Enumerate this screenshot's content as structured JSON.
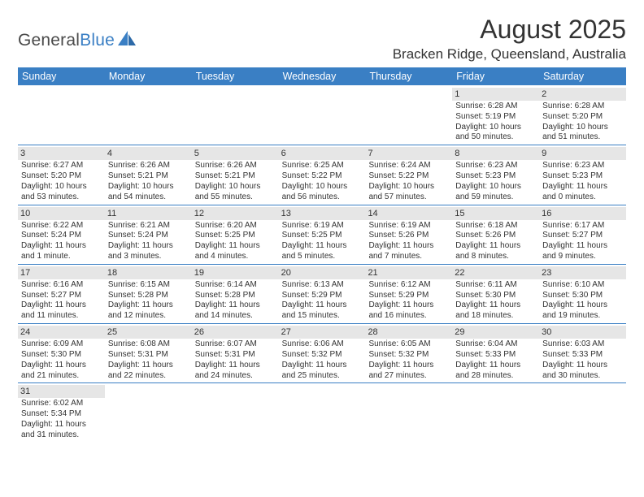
{
  "logo": {
    "text1": "General",
    "text2": "Blue"
  },
  "title": "August 2025",
  "location": "Bracken Ridge, Queensland, Australia",
  "colors": {
    "header_bg": "#3a7fc4",
    "header_text": "#ffffff",
    "daynum_bg": "#e6e6e6",
    "border": "#3a7fc4",
    "text": "#333333",
    "background": "#ffffff"
  },
  "weekdays": [
    "Sunday",
    "Monday",
    "Tuesday",
    "Wednesday",
    "Thursday",
    "Friday",
    "Saturday"
  ],
  "weeks": [
    [
      {
        "n": "",
        "sr": "",
        "ss": "",
        "dl": ""
      },
      {
        "n": "",
        "sr": "",
        "ss": "",
        "dl": ""
      },
      {
        "n": "",
        "sr": "",
        "ss": "",
        "dl": ""
      },
      {
        "n": "",
        "sr": "",
        "ss": "",
        "dl": ""
      },
      {
        "n": "",
        "sr": "",
        "ss": "",
        "dl": ""
      },
      {
        "n": "1",
        "sr": "Sunrise: 6:28 AM",
        "ss": "Sunset: 5:19 PM",
        "dl": "Daylight: 10 hours and 50 minutes."
      },
      {
        "n": "2",
        "sr": "Sunrise: 6:28 AM",
        "ss": "Sunset: 5:20 PM",
        "dl": "Daylight: 10 hours and 51 minutes."
      }
    ],
    [
      {
        "n": "3",
        "sr": "Sunrise: 6:27 AM",
        "ss": "Sunset: 5:20 PM",
        "dl": "Daylight: 10 hours and 53 minutes."
      },
      {
        "n": "4",
        "sr": "Sunrise: 6:26 AM",
        "ss": "Sunset: 5:21 PM",
        "dl": "Daylight: 10 hours and 54 minutes."
      },
      {
        "n": "5",
        "sr": "Sunrise: 6:26 AM",
        "ss": "Sunset: 5:21 PM",
        "dl": "Daylight: 10 hours and 55 minutes."
      },
      {
        "n": "6",
        "sr": "Sunrise: 6:25 AM",
        "ss": "Sunset: 5:22 PM",
        "dl": "Daylight: 10 hours and 56 minutes."
      },
      {
        "n": "7",
        "sr": "Sunrise: 6:24 AM",
        "ss": "Sunset: 5:22 PM",
        "dl": "Daylight: 10 hours and 57 minutes."
      },
      {
        "n": "8",
        "sr": "Sunrise: 6:23 AM",
        "ss": "Sunset: 5:23 PM",
        "dl": "Daylight: 10 hours and 59 minutes."
      },
      {
        "n": "9",
        "sr": "Sunrise: 6:23 AM",
        "ss": "Sunset: 5:23 PM",
        "dl": "Daylight: 11 hours and 0 minutes."
      }
    ],
    [
      {
        "n": "10",
        "sr": "Sunrise: 6:22 AM",
        "ss": "Sunset: 5:24 PM",
        "dl": "Daylight: 11 hours and 1 minute."
      },
      {
        "n": "11",
        "sr": "Sunrise: 6:21 AM",
        "ss": "Sunset: 5:24 PM",
        "dl": "Daylight: 11 hours and 3 minutes."
      },
      {
        "n": "12",
        "sr": "Sunrise: 6:20 AM",
        "ss": "Sunset: 5:25 PM",
        "dl": "Daylight: 11 hours and 4 minutes."
      },
      {
        "n": "13",
        "sr": "Sunrise: 6:19 AM",
        "ss": "Sunset: 5:25 PM",
        "dl": "Daylight: 11 hours and 5 minutes."
      },
      {
        "n": "14",
        "sr": "Sunrise: 6:19 AM",
        "ss": "Sunset: 5:26 PM",
        "dl": "Daylight: 11 hours and 7 minutes."
      },
      {
        "n": "15",
        "sr": "Sunrise: 6:18 AM",
        "ss": "Sunset: 5:26 PM",
        "dl": "Daylight: 11 hours and 8 minutes."
      },
      {
        "n": "16",
        "sr": "Sunrise: 6:17 AM",
        "ss": "Sunset: 5:27 PM",
        "dl": "Daylight: 11 hours and 9 minutes."
      }
    ],
    [
      {
        "n": "17",
        "sr": "Sunrise: 6:16 AM",
        "ss": "Sunset: 5:27 PM",
        "dl": "Daylight: 11 hours and 11 minutes."
      },
      {
        "n": "18",
        "sr": "Sunrise: 6:15 AM",
        "ss": "Sunset: 5:28 PM",
        "dl": "Daylight: 11 hours and 12 minutes."
      },
      {
        "n": "19",
        "sr": "Sunrise: 6:14 AM",
        "ss": "Sunset: 5:28 PM",
        "dl": "Daylight: 11 hours and 14 minutes."
      },
      {
        "n": "20",
        "sr": "Sunrise: 6:13 AM",
        "ss": "Sunset: 5:29 PM",
        "dl": "Daylight: 11 hours and 15 minutes."
      },
      {
        "n": "21",
        "sr": "Sunrise: 6:12 AM",
        "ss": "Sunset: 5:29 PM",
        "dl": "Daylight: 11 hours and 16 minutes."
      },
      {
        "n": "22",
        "sr": "Sunrise: 6:11 AM",
        "ss": "Sunset: 5:30 PM",
        "dl": "Daylight: 11 hours and 18 minutes."
      },
      {
        "n": "23",
        "sr": "Sunrise: 6:10 AM",
        "ss": "Sunset: 5:30 PM",
        "dl": "Daylight: 11 hours and 19 minutes."
      }
    ],
    [
      {
        "n": "24",
        "sr": "Sunrise: 6:09 AM",
        "ss": "Sunset: 5:30 PM",
        "dl": "Daylight: 11 hours and 21 minutes."
      },
      {
        "n": "25",
        "sr": "Sunrise: 6:08 AM",
        "ss": "Sunset: 5:31 PM",
        "dl": "Daylight: 11 hours and 22 minutes."
      },
      {
        "n": "26",
        "sr": "Sunrise: 6:07 AM",
        "ss": "Sunset: 5:31 PM",
        "dl": "Daylight: 11 hours and 24 minutes."
      },
      {
        "n": "27",
        "sr": "Sunrise: 6:06 AM",
        "ss": "Sunset: 5:32 PM",
        "dl": "Daylight: 11 hours and 25 minutes."
      },
      {
        "n": "28",
        "sr": "Sunrise: 6:05 AM",
        "ss": "Sunset: 5:32 PM",
        "dl": "Daylight: 11 hours and 27 minutes."
      },
      {
        "n": "29",
        "sr": "Sunrise: 6:04 AM",
        "ss": "Sunset: 5:33 PM",
        "dl": "Daylight: 11 hours and 28 minutes."
      },
      {
        "n": "30",
        "sr": "Sunrise: 6:03 AM",
        "ss": "Sunset: 5:33 PM",
        "dl": "Daylight: 11 hours and 30 minutes."
      }
    ],
    [
      {
        "n": "31",
        "sr": "Sunrise: 6:02 AM",
        "ss": "Sunset: 5:34 PM",
        "dl": "Daylight: 11 hours and 31 minutes."
      },
      {
        "n": "",
        "sr": "",
        "ss": "",
        "dl": ""
      },
      {
        "n": "",
        "sr": "",
        "ss": "",
        "dl": ""
      },
      {
        "n": "",
        "sr": "",
        "ss": "",
        "dl": ""
      },
      {
        "n": "",
        "sr": "",
        "ss": "",
        "dl": ""
      },
      {
        "n": "",
        "sr": "",
        "ss": "",
        "dl": ""
      },
      {
        "n": "",
        "sr": "",
        "ss": "",
        "dl": ""
      }
    ]
  ]
}
